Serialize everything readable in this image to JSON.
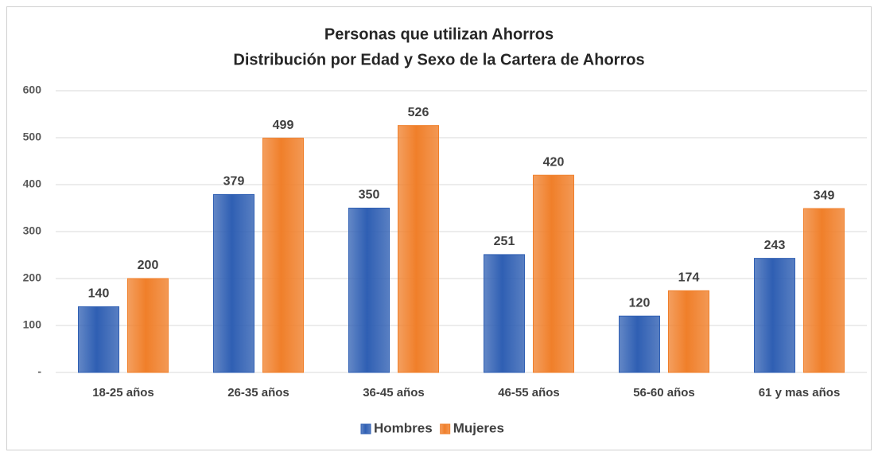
{
  "chart_data": {
    "type": "bar",
    "title": "Personas que utilizan Ahorros",
    "subtitle": "Distribución por Edad y Sexo de la Cartera de Ahorros",
    "categories": [
      "18-25 años",
      "26-35 años",
      "36-45 años",
      "46-55 años",
      "56-60 años",
      "61 y mas años"
    ],
    "series": [
      {
        "name": "Hombres",
        "color": "#2f5fb3",
        "values": [
          140,
          379,
          350,
          251,
          120,
          243
        ]
      },
      {
        "name": "Mujeres",
        "color": "#f07f2a",
        "values": [
          200,
          499,
          526,
          420,
          174,
          349
        ]
      }
    ],
    "ylim": [
      0,
      600
    ],
    "yticks": [
      {
        "value": 0,
        "label": "-"
      },
      100,
      200,
      300,
      400,
      500,
      600
    ],
    "grid": true,
    "legend": "bottom"
  }
}
